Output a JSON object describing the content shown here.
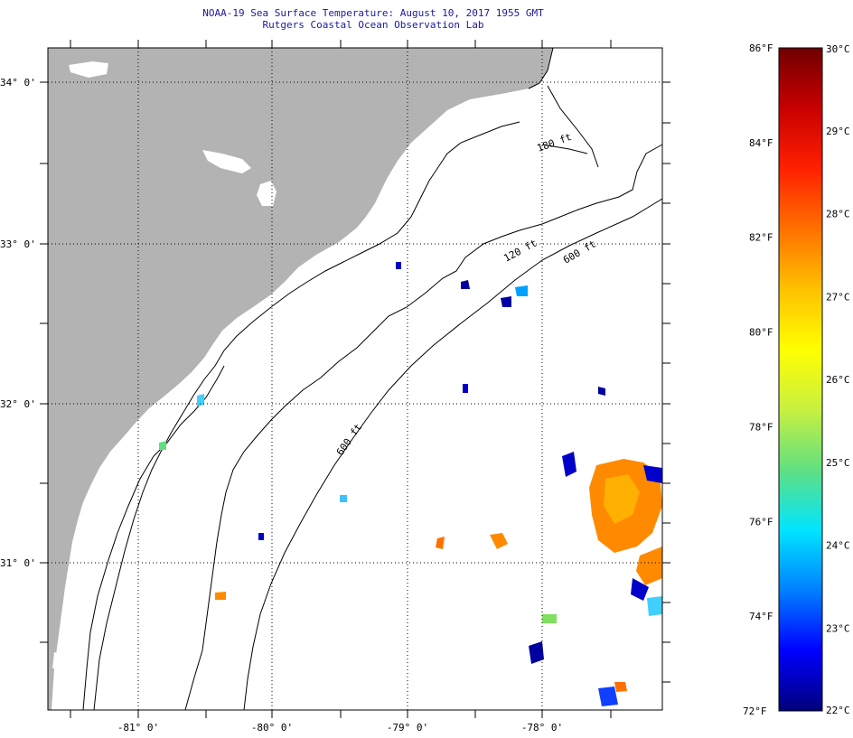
{
  "header": {
    "line1": "NOAA-19 Sea Surface Temperature:  August 10, 2017 1955 GMT",
    "line2": "Rutgers Coastal Ocean Observation Lab"
  },
  "map": {
    "lon_labels": [
      "-81° 0'",
      "-80° 0'",
      "-79° 0'",
      "-78° 0'"
    ],
    "lat_labels": [
      "34° 0'",
      "33° 0'",
      "32° 0'",
      "31° 0'"
    ],
    "contour_labels": [
      "120 ft",
      "600 ft",
      "180 ft",
      "600 ft"
    ],
    "colors": {
      "land": "#b3b3b3",
      "ocean": "#ffffff",
      "grid": "#000000"
    }
  },
  "colorbar": {
    "fahrenheit_labels": [
      "86°F",
      "84°F",
      "82°F",
      "80°F",
      "78°F",
      "76°F",
      "74°F",
      "72°F"
    ],
    "celsius_labels": [
      "30°C",
      "29°C",
      "28°C",
      "27°C",
      "26°C",
      "25°C",
      "24°C",
      "23°C",
      "22°C"
    ],
    "range_c": [
      22,
      30
    ],
    "range_f": [
      72,
      86
    ],
    "gradient": [
      "#00007a",
      "#0000ff",
      "#0080ff",
      "#00e5ff",
      "#60e080",
      "#c8f040",
      "#ffff00",
      "#ffc000",
      "#ff7000",
      "#ff2000",
      "#c80000",
      "#700000"
    ]
  }
}
